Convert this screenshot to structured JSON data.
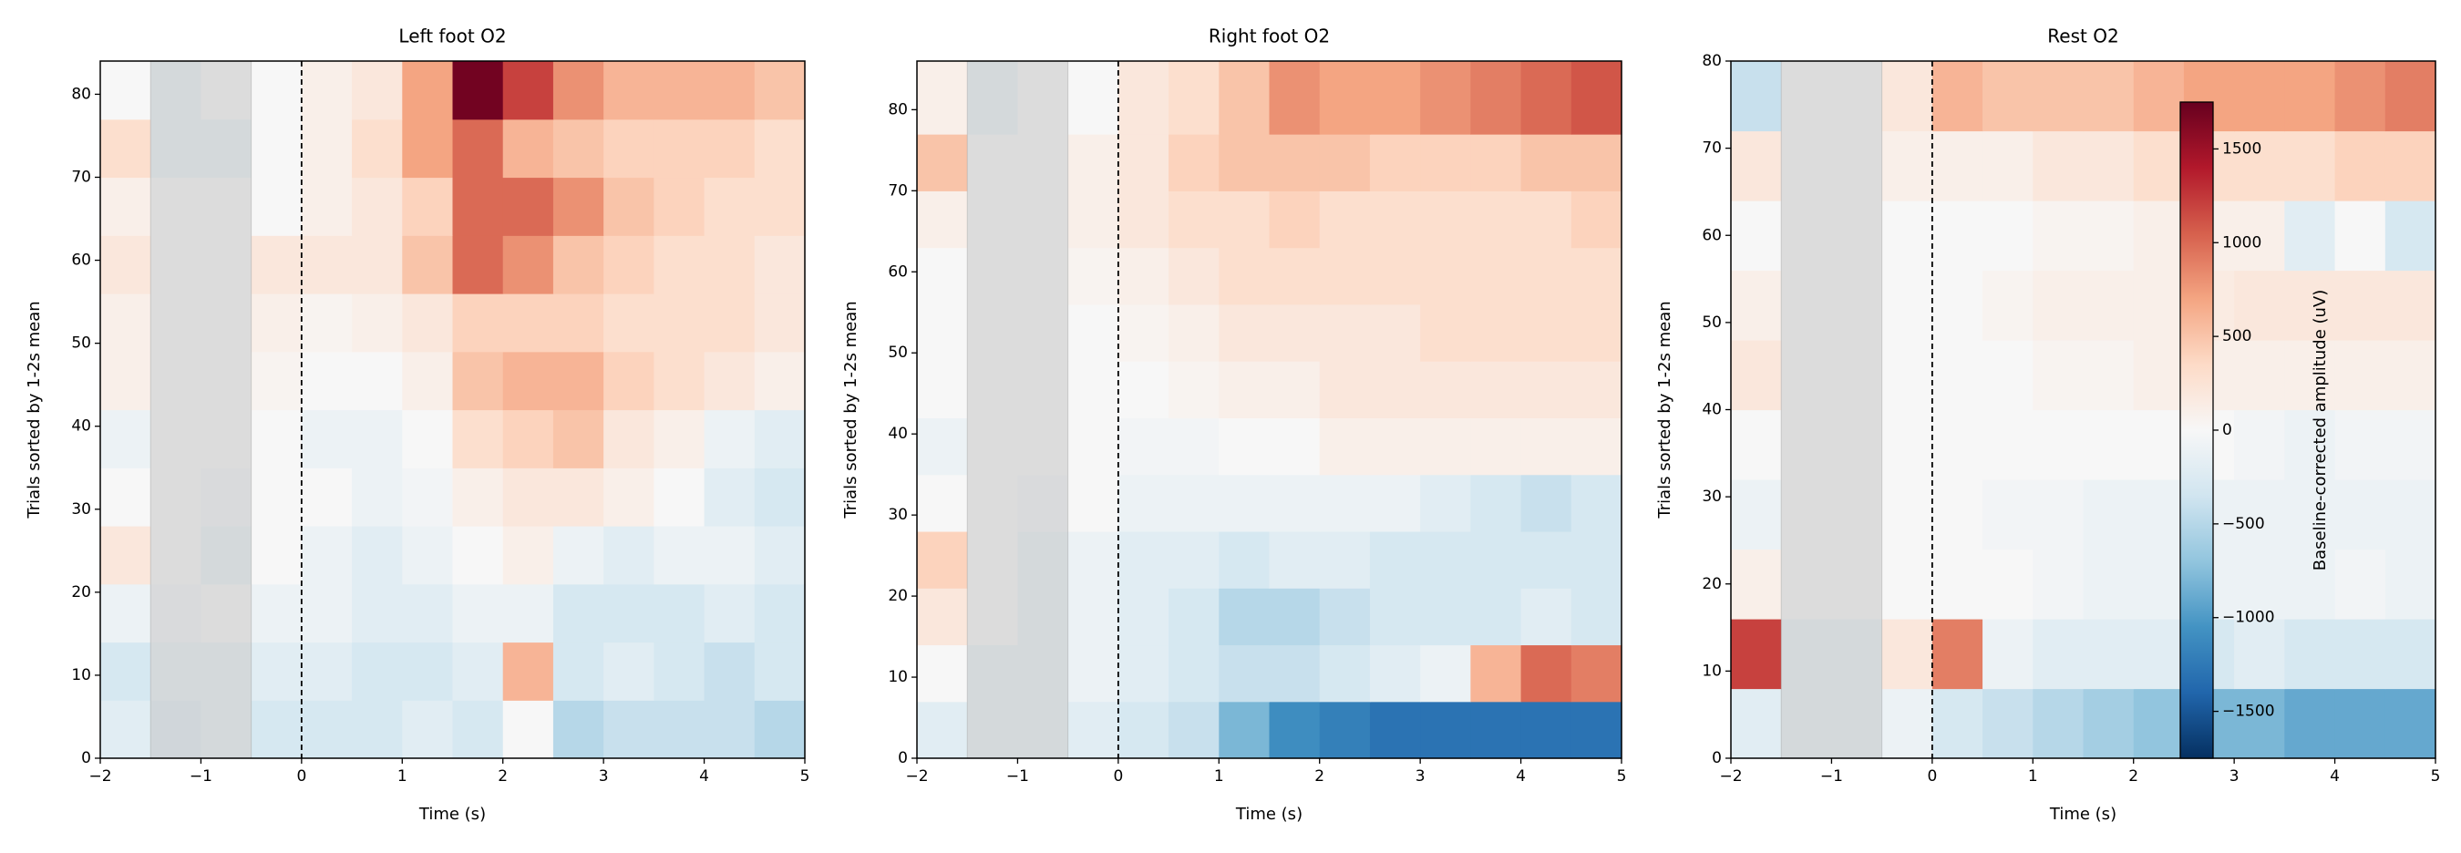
{
  "chart_data": [
    {
      "type": "heatmap",
      "title": "Left foot O2",
      "xlabel": "Time (s)",
      "ylabel": "Trials sorted by 1-2s mean",
      "colormap": "RdBu_r",
      "clim": [
        -1750,
        1750
      ],
      "xlim": [
        -2,
        5
      ],
      "ylim": [
        0,
        84
      ],
      "xticks": [
        {
          "value": -2,
          "label": "−2"
        },
        {
          "value": -1,
          "label": "−1"
        },
        0,
        1,
        2,
        3,
        4,
        5
      ],
      "yticks": [
        0,
        10,
        20,
        30,
        40,
        50,
        60,
        70,
        80
      ],
      "baseline_window": [
        -1.5,
        -0.5
      ],
      "event_line": 0,
      "x_edges": [
        -2,
        -1.5,
        -1,
        -0.5,
        0,
        0.5,
        1,
        1.5,
        2,
        2.5,
        3,
        3.5,
        4,
        4.5,
        5
      ],
      "y_edges": [
        0,
        7,
        14,
        21,
        28,
        35,
        42,
        49,
        56,
        63,
        70,
        77,
        84
      ],
      "z": [
        [
          -200,
          -150,
          -100,
          -300,
          -300,
          -300,
          -200,
          -300,
          0,
          -500,
          -400,
          -400,
          -400,
          -500
        ],
        [
          -300,
          -100,
          -100,
          -200,
          -200,
          -300,
          -300,
          -200,
          600,
          -300,
          -200,
          -300,
          -400,
          -300
        ],
        [
          -100,
          -50,
          0,
          -100,
          -100,
          -200,
          -200,
          -100,
          -100,
          -300,
          -300,
          -300,
          -200,
          -300
        ],
        [
          200,
          0,
          -100,
          0,
          -100,
          -200,
          -100,
          0,
          100,
          -100,
          -200,
          -100,
          -100,
          -200
        ],
        [
          0,
          0,
          -50,
          0,
          0,
          -100,
          -50,
          100,
          200,
          200,
          100,
          0,
          -200,
          -300
        ],
        [
          -100,
          0,
          0,
          0,
          -100,
          -100,
          0,
          300,
          400,
          500,
          200,
          100,
          -100,
          -200
        ],
        [
          100,
          0,
          0,
          50,
          0,
          0,
          100,
          500,
          600,
          600,
          400,
          300,
          200,
          100
        ],
        [
          100,
          0,
          0,
          100,
          50,
          100,
          200,
          400,
          400,
          400,
          300,
          300,
          300,
          200
        ],
        [
          200,
          0,
          0,
          200,
          200,
          200,
          500,
          1000,
          800,
          500,
          400,
          300,
          300,
          200
        ],
        [
          100,
          0,
          0,
          0,
          100,
          200,
          400,
          1000,
          1000,
          800,
          500,
          400,
          300,
          300
        ],
        [
          300,
          -100,
          -100,
          0,
          100,
          300,
          700,
          1000,
          600,
          500,
          400,
          400,
          400,
          300
        ],
        [
          0,
          -100,
          0,
          0,
          100,
          200,
          700,
          1700,
          1200,
          800,
          600,
          600,
          600,
          500
        ]
      ]
    },
    {
      "type": "heatmap",
      "title": "Right foot O2",
      "xlabel": "Time (s)",
      "ylabel": "Trials sorted by 1-2s mean",
      "colormap": "RdBu_r",
      "clim": [
        -1750,
        1750
      ],
      "xlim": [
        -2,
        5
      ],
      "ylim": [
        0,
        86
      ],
      "xticks": [
        {
          "value": -2,
          "label": "−2"
        },
        {
          "value": -1,
          "label": "−1"
        },
        0,
        1,
        2,
        3,
        4,
        5
      ],
      "yticks": [
        0,
        10,
        20,
        30,
        40,
        50,
        60,
        70,
        80
      ],
      "baseline_window": [
        -1.5,
        -0.5
      ],
      "event_line": 0,
      "x_edges": [
        -2,
        -1.5,
        -1,
        -0.5,
        0,
        0.5,
        1,
        1.5,
        2,
        2.5,
        3,
        3.5,
        4,
        4.5,
        5
      ],
      "y_edges": [
        0,
        7,
        14,
        21,
        28,
        35,
        42,
        49,
        56,
        63,
        70,
        77,
        86
      ],
      "z": [
        [
          -200,
          -100,
          -100,
          -200,
          -300,
          -400,
          -800,
          -1100,
          -1200,
          -1300,
          -1300,
          -1300,
          -1300,
          -1300
        ],
        [
          0,
          -100,
          -100,
          -100,
          -200,
          -300,
          -400,
          -400,
          -300,
          -200,
          -100,
          600,
          1000,
          900
        ],
        [
          200,
          0,
          -100,
          -100,
          -200,
          -300,
          -500,
          -500,
          -400,
          -300,
          -300,
          -300,
          -200,
          -300
        ],
        [
          400,
          0,
          -100,
          -100,
          -200,
          -200,
          -300,
          -200,
          -200,
          -300,
          -300,
          -300,
          -300,
          -300
        ],
        [
          0,
          0,
          -50,
          0,
          -100,
          -100,
          -100,
          -100,
          -100,
          -100,
          -200,
          -300,
          -400,
          -300
        ],
        [
          -100,
          0,
          0,
          0,
          -50,
          -50,
          0,
          0,
          100,
          100,
          100,
          100,
          100,
          100
        ],
        [
          0,
          0,
          0,
          0,
          0,
          50,
          100,
          100,
          200,
          200,
          200,
          200,
          200,
          200
        ],
        [
          0,
          0,
          0,
          0,
          50,
          100,
          200,
          200,
          200,
          200,
          300,
          300,
          300,
          300
        ],
        [
          0,
          0,
          0,
          50,
          100,
          200,
          300,
          300,
          300,
          300,
          300,
          300,
          300,
          300
        ],
        [
          100,
          0,
          0,
          100,
          200,
          300,
          300,
          400,
          300,
          300,
          300,
          300,
          300,
          400
        ],
        [
          500,
          0,
          0,
          100,
          200,
          400,
          500,
          500,
          500,
          400,
          400,
          400,
          500,
          500
        ],
        [
          100,
          -100,
          0,
          0,
          200,
          300,
          500,
          800,
          700,
          700,
          800,
          900,
          1000,
          1100
        ]
      ]
    },
    {
      "type": "heatmap",
      "title": "Rest O2",
      "xlabel": "Time (s)",
      "ylabel": "Trials sorted by 1-2s mean",
      "colormap": "RdBu_r",
      "clim": [
        -1750,
        1750
      ],
      "xlim": [
        -2,
        5
      ],
      "ylim": [
        0,
        80
      ],
      "xticks": [
        {
          "value": -2,
          "label": "−2"
        },
        {
          "value": -1,
          "label": "−1"
        },
        0,
        1,
        2,
        3,
        4,
        5
      ],
      "yticks": [
        0,
        10,
        20,
        30,
        40,
        50,
        60,
        70,
        80
      ],
      "baseline_window": [
        -1.5,
        -0.5
      ],
      "event_line": 0,
      "x_edges": [
        -2,
        -1.5,
        -1,
        -0.5,
        0,
        0.5,
        1,
        1.5,
        2,
        2.5,
        3,
        3.5,
        4,
        4.5,
        5
      ],
      "y_edges": [
        0,
        8,
        16,
        24,
        32,
        40,
        48,
        56,
        64,
        72,
        80
      ],
      "z": [
        [
          -200,
          -100,
          -100,
          -100,
          -300,
          -400,
          -500,
          -600,
          -700,
          -800,
          -800,
          -900,
          -900,
          -900
        ],
        [
          1200,
          -100,
          -100,
          200,
          900,
          -100,
          -200,
          -200,
          -200,
          -300,
          -200,
          -300,
          -300,
          -300
        ],
        [
          100,
          0,
          0,
          0,
          0,
          0,
          -50,
          -100,
          -100,
          -100,
          -100,
          -100,
          -50,
          -100
        ],
        [
          -100,
          0,
          0,
          0,
          0,
          -50,
          -50,
          -100,
          -100,
          -100,
          -100,
          -100,
          -100,
          -100
        ],
        [
          0,
          0,
          0,
          0,
          0,
          0,
          0,
          0,
          0,
          0,
          -50,
          -100,
          -50,
          -50
        ],
        [
          200,
          0,
          0,
          0,
          0,
          0,
          50,
          50,
          100,
          100,
          100,
          100,
          100,
          100
        ],
        [
          100,
          0,
          0,
          0,
          0,
          50,
          100,
          100,
          100,
          150,
          200,
          200,
          200,
          200
        ],
        [
          0,
          0,
          0,
          0,
          0,
          0,
          50,
          50,
          100,
          100,
          100,
          -200,
          0,
          -300
        ],
        [
          200,
          0,
          0,
          100,
          100,
          100,
          200,
          200,
          300,
          300,
          300,
          300,
          400,
          400
        ],
        [
          -400,
          0,
          0,
          200,
          600,
          500,
          500,
          500,
          600,
          700,
          700,
          700,
          800,
          900
        ]
      ],
      "colorbar": {
        "label": "Baseline-corrected amplitude (uV)",
        "ticks": [
          {
            "value": -1500,
            "label": "−1500"
          },
          {
            "value": -1000,
            "label": "−1000"
          },
          {
            "value": -500,
            "label": "−500"
          },
          0,
          500,
          1000,
          1500
        ]
      }
    }
  ]
}
